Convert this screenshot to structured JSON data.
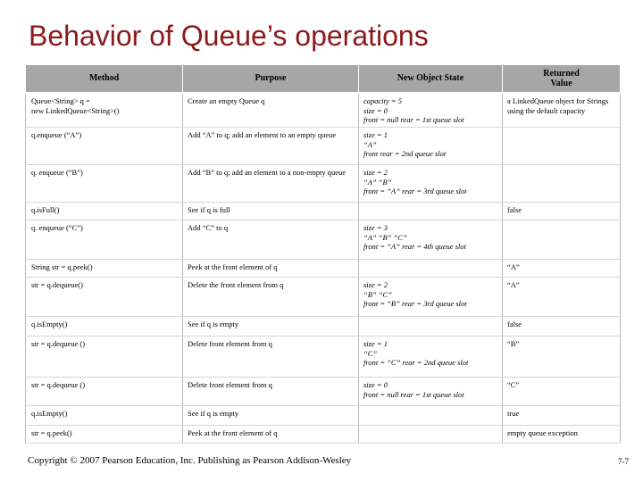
{
  "title": "Behavior of Queue’s operations",
  "headers": [
    "Method",
    "Purpose",
    "New Object State",
    "Returned\nValue"
  ],
  "rows": [
    {
      "h": 36,
      "cells": [
        "Queue<String> q =\n    new LinkedQueue<String>()",
        "Create an empty Queue q",
        "capacity = 5\nsize = 0\nfront = null      rear = 1st queue slot",
        "a LinkedQueue object for Strings using the default capacity"
      ]
    },
    {
      "h": 42,
      "cells": [
        "q.enqueue (“A”)",
        "Add “A” to q; add an element to an empty queue",
        "size = 1\n“A”\nfront      rear = 2nd queue slot",
        ""
      ]
    },
    {
      "h": 42,
      "cells": [
        "q. enqueue (“B”)",
        "Add “B” to q; add an element to a non-empty queue",
        "size = 2\n“A”  “B”\nfront  = “A”   rear = 3rd queue slot",
        ""
      ]
    },
    {
      "h": 20,
      "cells": [
        "q.isFull()",
        "See if q is full",
        "",
        "false"
      ]
    },
    {
      "h": 44,
      "cells": [
        "q. enqueue (“C”)",
        "Add “C” to q",
        "size = 3\n“A” “B” “C”\nfront  = “A”   rear = 4th queue slot",
        ""
      ]
    },
    {
      "h": 20,
      "cells": [
        "String str = q.peek()",
        "Peek at the front element of q",
        "",
        "“A”"
      ]
    },
    {
      "h": 44,
      "cells": [
        "str = q.dequeue()",
        "Delete the front element from q",
        "size = 2\n“B”  “C”\nfront  = “B”   rear = 3rd queue slot",
        "“A”"
      ]
    },
    {
      "h": 22,
      "cells": [
        "q.isEmpty()",
        "See if q is empty",
        "",
        "false"
      ]
    },
    {
      "h": 46,
      "cells": [
        "str = q.dequeue ()",
        "Delete front element from q",
        "size = 1\n“C”\nfront  = “C”   rear = 2nd queue slot",
        "“B”"
      ]
    },
    {
      "h": 32,
      "cells": [
        "str = q.dequeue ()",
        "Delete front element from q",
        "size = 0\nfront = null      rear = 1st queue slot",
        "“C”"
      ]
    },
    {
      "h": 22,
      "cells": [
        "q.isEmpty()",
        "See if q is empty",
        "",
        "true"
      ]
    },
    {
      "h": 20,
      "cells": [
        "str = q.peek()",
        "Peek at the front element of q",
        "",
        "empty queue exception"
      ]
    }
  ],
  "footer": "Copyright © 2007 Pearson Education, Inc. Publishing as Pearson Addison-Wesley",
  "page_number": "7-7"
}
